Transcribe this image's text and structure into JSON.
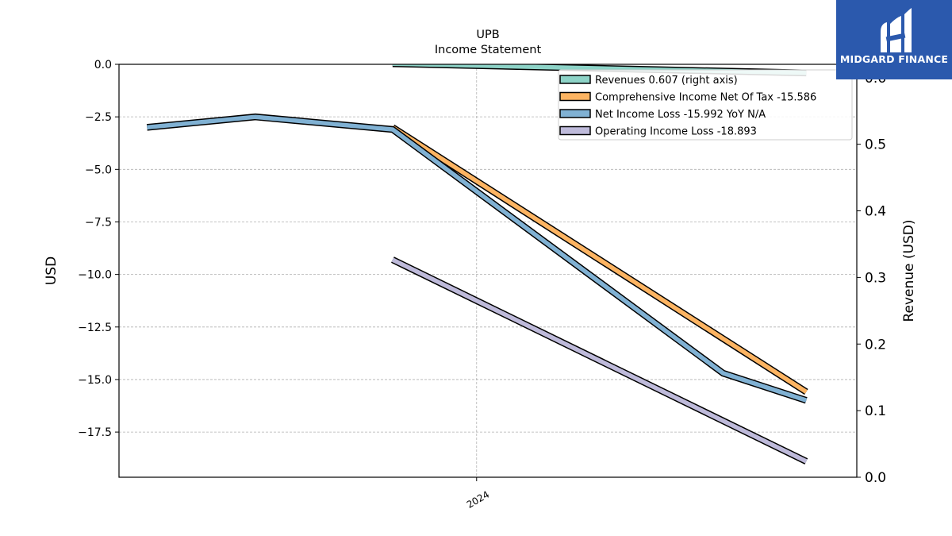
{
  "chart_data": {
    "type": "line",
    "title": "UPB",
    "subtitle": "Income Statement",
    "ylabel": "USD",
    "y2label": "Revenue (USD)",
    "ylim": [
      -19.65,
      0
    ],
    "y2lim": [
      0,
      0.62
    ],
    "yticks": [
      "0.0",
      "−2.5",
      "−5.0",
      "−7.5",
      "−10.0",
      "−12.5",
      "−15.0",
      "−17.5"
    ],
    "y2ticks": [
      "0.0",
      "0.1",
      "0.2",
      "0.3",
      "0.4",
      "0.5",
      "0.6"
    ],
    "xlim": [
      "2022-12-01",
      "2025-02-25"
    ],
    "xticks": [
      {
        "date": "2024-01-01",
        "label": "2024"
      }
    ],
    "grid": true,
    "legend_position": "top-right",
    "series": [
      {
        "name": "Revenues",
        "legend": "Revenues  0.607 (right axis)",
        "axis": "right",
        "color": "#8dd3c7",
        "points": [
          [
            "2023-09-30",
            0.621
          ],
          [
            "2024-12-31",
            0.607
          ]
        ]
      },
      {
        "name": "Comprehensive Income Net Of Tax",
        "legend": "Comprehensive Income Net Of Tax  -15.586",
        "axis": "left",
        "color": "#fdb462",
        "points": [
          [
            "2023-09-30",
            -3.0
          ],
          [
            "2024-12-31",
            -15.586
          ]
        ]
      },
      {
        "name": "Net Income Loss",
        "legend": "Net Income Loss  -15.992 YoY N/A",
        "axis": "left",
        "color": "#80b1d3",
        "points": [
          [
            "2023-01-01",
            -3.0
          ],
          [
            "2023-05-01",
            -2.5
          ],
          [
            "2023-09-30",
            -3.1
          ],
          [
            "2024-09-30",
            -14.7
          ],
          [
            "2024-12-31",
            -15.992
          ]
        ]
      },
      {
        "name": "Operating Income Loss",
        "legend": "Operating Income Loss  -18.893",
        "axis": "left",
        "color": "#bebada",
        "points": [
          [
            "2023-09-30",
            -9.3
          ],
          [
            "2024-12-31",
            -18.893
          ]
        ]
      }
    ]
  },
  "logo": {
    "text": "MIDGARD FINANCE"
  }
}
